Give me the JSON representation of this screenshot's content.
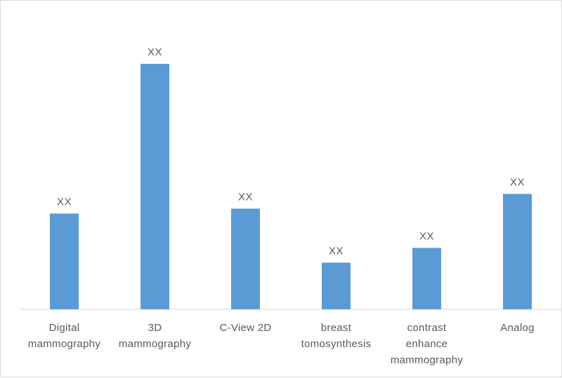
{
  "chart_data": {
    "type": "bar",
    "categories": [
      [
        "Digital",
        "mammography"
      ],
      [
        "3D",
        "mammography"
      ],
      [
        "C-View 2D"
      ],
      [
        "breast",
        "tomosynthesis"
      ],
      [
        "contrast",
        "enhance",
        "mammography"
      ],
      [
        "Analog"
      ]
    ],
    "values": [
      39,
      100,
      41,
      19,
      25,
      47
    ],
    "data_labels": [
      "XX",
      "XX",
      "XX",
      "XX",
      "XX",
      "XX"
    ],
    "title": "",
    "xlabel": "",
    "ylabel": "",
    "ylim": [
      0,
      100
    ],
    "grid": false,
    "legend": "none",
    "colors": {
      "bar": "#5b9bd5",
      "axis": "#d9d9d9",
      "text": "#595959",
      "border": "#d9d9d9"
    }
  }
}
